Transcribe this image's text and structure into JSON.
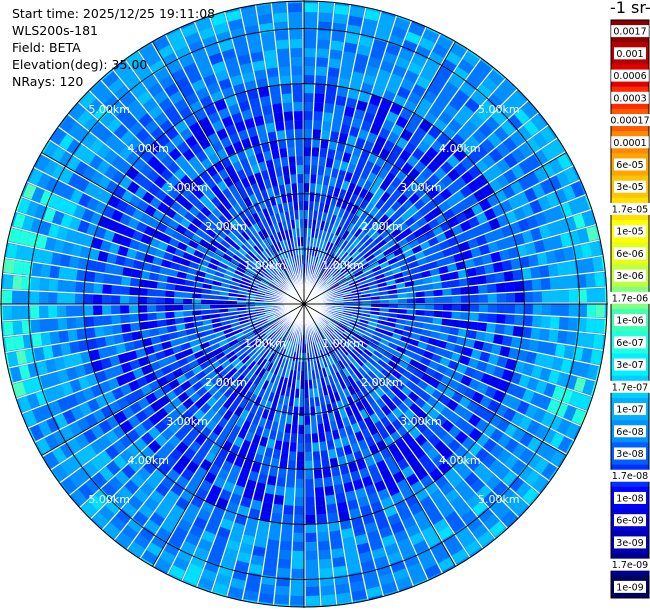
{
  "header": {
    "start_time": "Start time: 2025/12/25 19:11:08",
    "device": "WLS200s-181",
    "field": "Field: BETA",
    "elevation": "Elevation(deg): 35.00",
    "nrays": "NRays: 120"
  },
  "colorbar": {
    "title": "-1 sr-",
    "ticks": [
      "0.0017",
      "0.001",
      "0.0006",
      "0.0003",
      "0.00017",
      "0.0001",
      "6e-05",
      "3e-05",
      "1.7e-05",
      "1e-05",
      "6e-06",
      "3e-06",
      "1.7e-06",
      "1e-06",
      "6e-07",
      "3e-07",
      "1.7e-07",
      "1e-07",
      "6e-08",
      "3e-08",
      "1.7e-08",
      "1e-08",
      "6e-09",
      "3e-09",
      "1.7e-09",
      "1e-09"
    ],
    "colors": [
      "#8b0000",
      "#b40000",
      "#e00000",
      "#ff2a00",
      "#ff5a00",
      "#ff8a00",
      "#ffa500",
      "#ffc400",
      "#ffe000",
      "#ffff00",
      "#e6ff1a",
      "#bfff40",
      "#80ff80",
      "#40ffb0",
      "#20ffe0",
      "#00f0ff",
      "#00d0ff",
      "#00b0ff",
      "#0090ff",
      "#0060ff",
      "#0030ff",
      "#0000ff",
      "#0000d8",
      "#0000b0",
      "#000088",
      "#000060"
    ]
  },
  "chart_data": {
    "type": "polar-ppi",
    "nrays": 120,
    "elevation_deg": 35.0,
    "range_km_max": 5.5,
    "range_rings_km": [
      1,
      2,
      3,
      4,
      5
    ],
    "ring_labels": [
      "1.00km",
      "2.00km",
      "3.00km",
      "4.00km",
      "5.00km"
    ],
    "dominant_value_range": [
      1e-09,
      3e-07
    ]
  }
}
